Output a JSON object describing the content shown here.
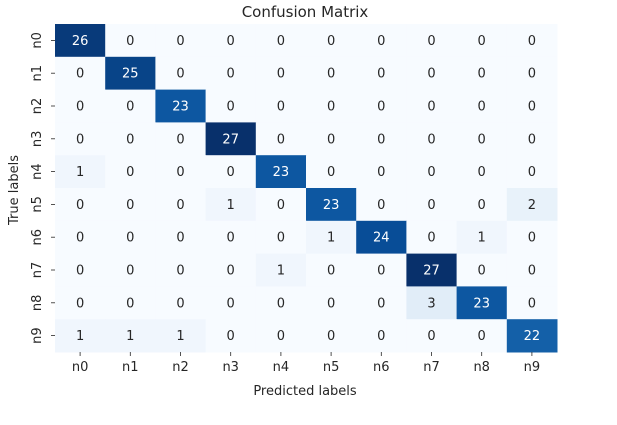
{
  "chart_data": {
    "type": "heatmap",
    "title": "Confusion Matrix",
    "xlabel": "Predicted labels",
    "ylabel": "True labels",
    "x_categories": [
      "n0",
      "n1",
      "n2",
      "n3",
      "n4",
      "n5",
      "n6",
      "n7",
      "n8",
      "n9"
    ],
    "y_categories": [
      "n0",
      "n1",
      "n2",
      "n3",
      "n4",
      "n5",
      "n6",
      "n7",
      "n8",
      "n9"
    ],
    "values": [
      [
        26,
        0,
        0,
        0,
        0,
        0,
        0,
        0,
        0,
        0
      ],
      [
        0,
        25,
        0,
        0,
        0,
        0,
        0,
        0,
        0,
        0
      ],
      [
        0,
        0,
        23,
        0,
        0,
        0,
        0,
        0,
        0,
        0
      ],
      [
        0,
        0,
        0,
        27,
        0,
        0,
        0,
        0,
        0,
        0
      ],
      [
        1,
        0,
        0,
        0,
        23,
        0,
        0,
        0,
        0,
        0
      ],
      [
        0,
        0,
        0,
        1,
        0,
        23,
        0,
        0,
        0,
        2
      ],
      [
        0,
        0,
        0,
        0,
        0,
        1,
        24,
        0,
        1,
        0
      ],
      [
        0,
        0,
        0,
        0,
        1,
        0,
        0,
        27,
        0,
        0
      ],
      [
        0,
        0,
        0,
        0,
        0,
        0,
        0,
        3,
        23,
        0
      ],
      [
        1,
        1,
        1,
        0,
        0,
        0,
        0,
        0,
        0,
        22
      ]
    ],
    "colormap": "Blues",
    "colorbar": false,
    "annotations": true,
    "vmin": 0,
    "vmax": 27
  }
}
